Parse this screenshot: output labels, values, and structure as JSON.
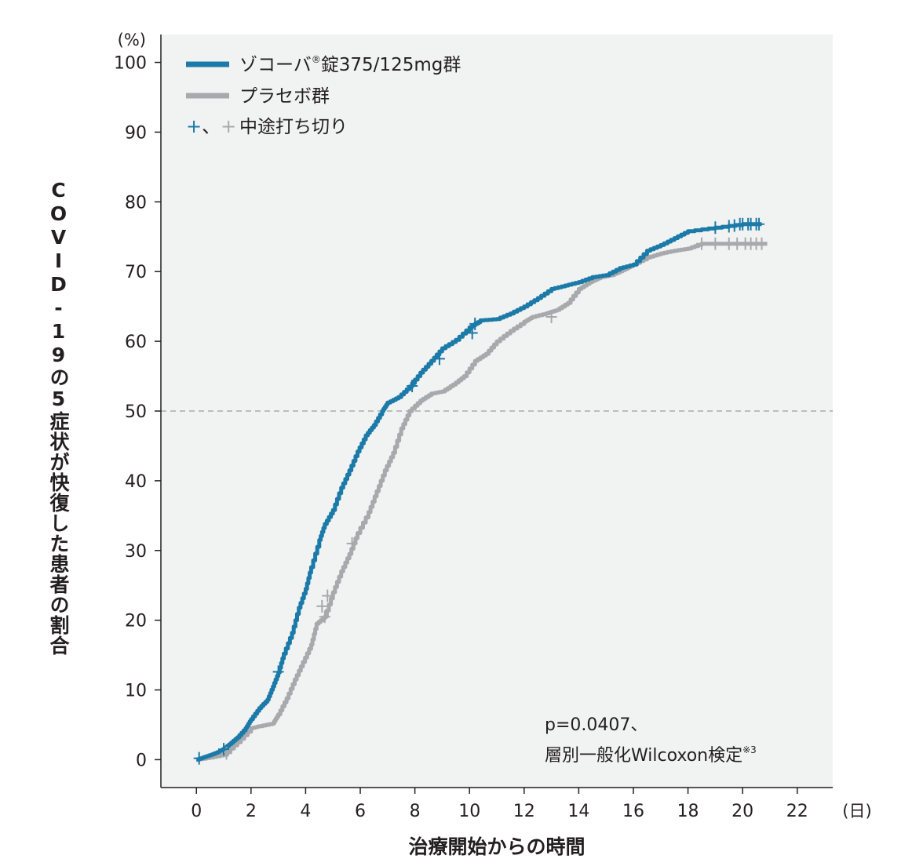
{
  "chart_data": {
    "type": "line",
    "xlabel": "治療開始からの時間",
    "x_unit": "(日)",
    "ylabel": "COVID-19の5症状が快復した患者の割合",
    "y_unit": "(%)",
    "xlim": [
      -1.3,
      23.3
    ],
    "ylim": [
      -4,
      104
    ],
    "xticks": [
      0,
      2,
      4,
      6,
      8,
      10,
      12,
      14,
      16,
      18,
      20,
      22
    ],
    "yticks": [
      0,
      10,
      20,
      30,
      40,
      50,
      60,
      70,
      80,
      90,
      100
    ],
    "reference_line": {
      "y": 50,
      "style": "dashed"
    },
    "grid": false,
    "legend_position": "top-left",
    "legend": {
      "series1": "ゾコーバ",
      "series1_sup": "®",
      "series1_suffix": "錠375/125mg群",
      "series2": "プラセボ群",
      "censor_symbol": "+、+",
      "censor_label": "中途打ち切り"
    },
    "annotation": {
      "line1": "p=0.0407、",
      "line2": "層別一般化Wilcoxon検定",
      "line2_sup": "※3"
    },
    "series": [
      {
        "name": "ゾコーバ®錠375/125mg群",
        "color": "#1b7aa8",
        "points": [
          [
            0,
            0
          ],
          [
            0.3,
            0.4
          ],
          [
            0.6,
            0.8
          ],
          [
            0.9,
            1.3
          ],
          [
            1.2,
            2.2
          ],
          [
            1.5,
            3.2
          ],
          [
            1.8,
            4.5
          ],
          [
            2.0,
            5.8
          ],
          [
            2.3,
            7.4
          ],
          [
            2.6,
            8.6
          ],
          [
            2.8,
            10.5
          ],
          [
            3.0,
            12.5
          ],
          [
            3.2,
            15.2
          ],
          [
            3.5,
            18.2
          ],
          [
            3.75,
            21.8
          ],
          [
            4.0,
            24.5
          ],
          [
            4.2,
            27.6
          ],
          [
            4.5,
            31.5
          ],
          [
            4.7,
            33.8
          ],
          [
            5.0,
            35.8
          ],
          [
            5.3,
            39.0
          ],
          [
            5.6,
            41.5
          ],
          [
            5.9,
            44.2
          ],
          [
            6.2,
            46.5
          ],
          [
            6.5,
            48.0
          ],
          [
            6.8,
            50.0
          ],
          [
            7.0,
            51.2
          ],
          [
            7.4,
            52.0
          ],
          [
            7.8,
            53.5
          ],
          [
            8.2,
            55.5
          ],
          [
            8.6,
            57.2
          ],
          [
            9.0,
            59.0
          ],
          [
            9.5,
            60.2
          ],
          [
            10.0,
            62.0
          ],
          [
            10.4,
            63.0
          ],
          [
            11.0,
            63.2
          ],
          [
            11.5,
            64.0
          ],
          [
            12.0,
            65.0
          ],
          [
            12.5,
            66.2
          ],
          [
            13.0,
            67.5
          ],
          [
            13.5,
            68.0
          ],
          [
            14.0,
            68.5
          ],
          [
            14.5,
            69.2
          ],
          [
            15.0,
            69.5
          ],
          [
            15.5,
            70.5
          ],
          [
            16.0,
            71.0
          ],
          [
            16.5,
            73.0
          ],
          [
            17.0,
            73.8
          ],
          [
            17.5,
            74.8
          ],
          [
            18.0,
            75.8
          ],
          [
            19.0,
            76.3
          ],
          [
            20.0,
            76.8
          ],
          [
            20.7,
            76.8
          ]
        ],
        "censored": [
          [
            0.1,
            0.2
          ],
          [
            1.0,
            1.5
          ],
          [
            3.0,
            12.6
          ],
          [
            7.9,
            53.6
          ],
          [
            8.9,
            57.5
          ],
          [
            10.1,
            61.2
          ],
          [
            10.2,
            62.5
          ],
          [
            19.0,
            76.3
          ],
          [
            19.5,
            76.5
          ],
          [
            19.7,
            76.6
          ],
          [
            19.9,
            76.8
          ],
          [
            20.0,
            76.8
          ],
          [
            20.2,
            76.8
          ],
          [
            20.3,
            76.8
          ],
          [
            20.5,
            76.8
          ],
          [
            20.6,
            76.8
          ]
        ]
      },
      {
        "name": "プラセボ群",
        "color": "#a7a9ac",
        "points": [
          [
            0,
            0
          ],
          [
            0.5,
            0.3
          ],
          [
            1.0,
            0.7
          ],
          [
            1.5,
            2.5
          ],
          [
            2.0,
            4.5
          ],
          [
            2.3,
            4.8
          ],
          [
            2.8,
            5.2
          ],
          [
            3.0,
            6.5
          ],
          [
            3.3,
            8.8
          ],
          [
            3.6,
            11.5
          ],
          [
            3.9,
            14.0
          ],
          [
            4.2,
            16.5
          ],
          [
            4.4,
            19.5
          ],
          [
            4.7,
            20.5
          ],
          [
            5.0,
            24.0
          ],
          [
            5.3,
            27.0
          ],
          [
            5.6,
            29.5
          ],
          [
            5.9,
            32.5
          ],
          [
            6.3,
            35.5
          ],
          [
            6.6,
            38.5
          ],
          [
            6.9,
            41.5
          ],
          [
            7.2,
            44.0
          ],
          [
            7.5,
            47.5
          ],
          [
            7.8,
            50.0
          ],
          [
            8.2,
            51.5
          ],
          [
            8.6,
            52.5
          ],
          [
            9.0,
            52.8
          ],
          [
            9.4,
            53.8
          ],
          [
            9.8,
            55.0
          ],
          [
            10.2,
            57.2
          ],
          [
            10.6,
            58.2
          ],
          [
            11.0,
            60.0
          ],
          [
            11.5,
            61.5
          ],
          [
            12.0,
            62.8
          ],
          [
            12.3,
            63.5
          ],
          [
            12.8,
            64.0
          ],
          [
            13.2,
            64.5
          ],
          [
            13.6,
            65.5
          ],
          [
            14.0,
            67.5
          ],
          [
            14.4,
            68.5
          ],
          [
            14.8,
            69.2
          ],
          [
            15.2,
            69.5
          ],
          [
            15.6,
            70.2
          ],
          [
            16.0,
            71.0
          ],
          [
            16.5,
            72.0
          ],
          [
            17.0,
            72.6
          ],
          [
            17.5,
            73.0
          ],
          [
            18.0,
            73.3
          ],
          [
            18.5,
            74.0
          ],
          [
            19.0,
            74.0
          ],
          [
            20.0,
            74.0
          ],
          [
            20.9,
            74.0
          ]
        ]
      }
    ],
    "censored_gray": [
      [
        1.1,
        0.9
      ],
      [
        5.7,
        31.0
      ],
      [
        4.7,
        20.5
      ],
      [
        4.6,
        22.0
      ],
      [
        4.8,
        23.5
      ],
      [
        13.0,
        63.5
      ],
      [
        18.5,
        74.0
      ],
      [
        19.0,
        74.0
      ],
      [
        19.5,
        74.0
      ],
      [
        19.8,
        74.0
      ],
      [
        20.1,
        74.0
      ],
      [
        20.3,
        74.0
      ],
      [
        20.5,
        74.0
      ],
      [
        20.7,
        74.0
      ]
    ]
  }
}
